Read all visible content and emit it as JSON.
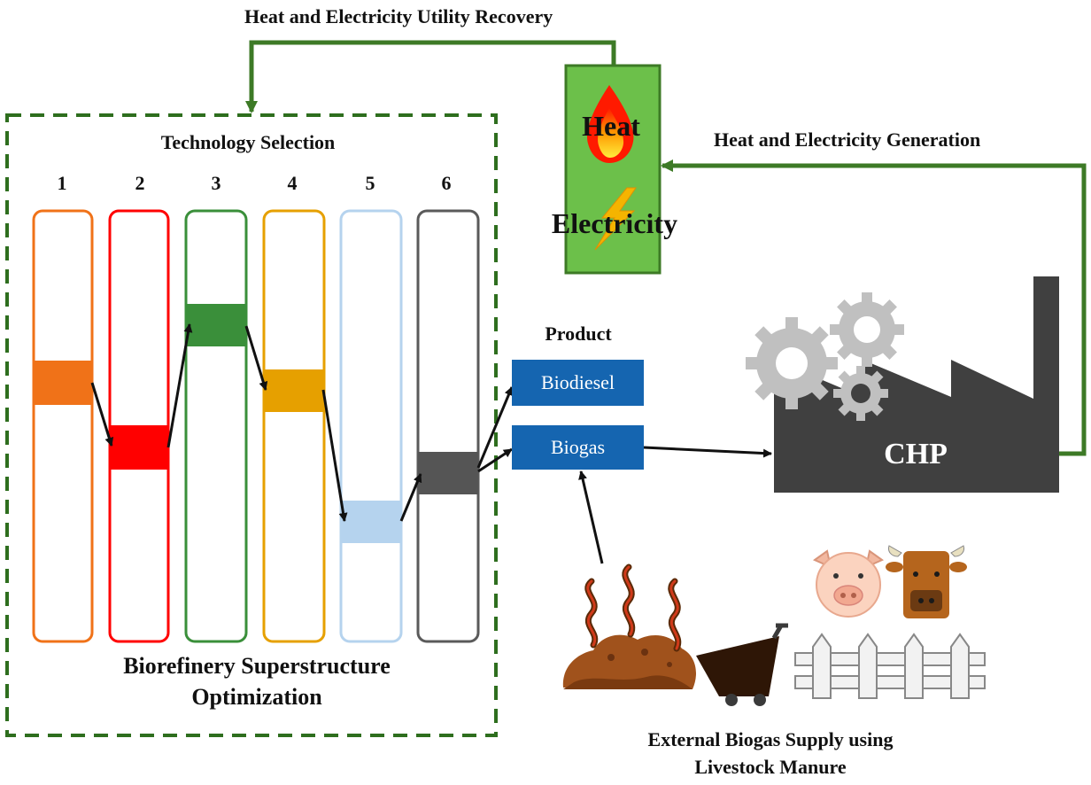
{
  "header": {
    "recovery_label": "Heat and Electricity Utility Recovery"
  },
  "superstructure": {
    "section_title": "Technology Selection",
    "column_numbers": [
      "1",
      "2",
      "3",
      "4",
      "5",
      "6"
    ],
    "footer_line1": "Biorefinery Superstructure",
    "footer_line2": "Optimization"
  },
  "utility": {
    "heat_label": "Heat",
    "electricity_label": "Electricity"
  },
  "generation_label": "Heat and Electricity Generation",
  "product": {
    "title": "Product",
    "items": [
      "Biodiesel",
      "Biogas"
    ]
  },
  "chp": {
    "label": "CHP"
  },
  "external_supply": {
    "line1": "External Biogas Supply using",
    "line2": "Livestock Manure"
  },
  "colors": {
    "column_colors": [
      "#f07218",
      "#ff0000",
      "#3a8f3a",
      "#e6a000",
      "#b5d3ee",
      "#5a5a5a"
    ],
    "flow_green": "#3d7a26",
    "utility_box": "#6cc04a",
    "product_box": "#1565b0",
    "factory": "#404040"
  }
}
